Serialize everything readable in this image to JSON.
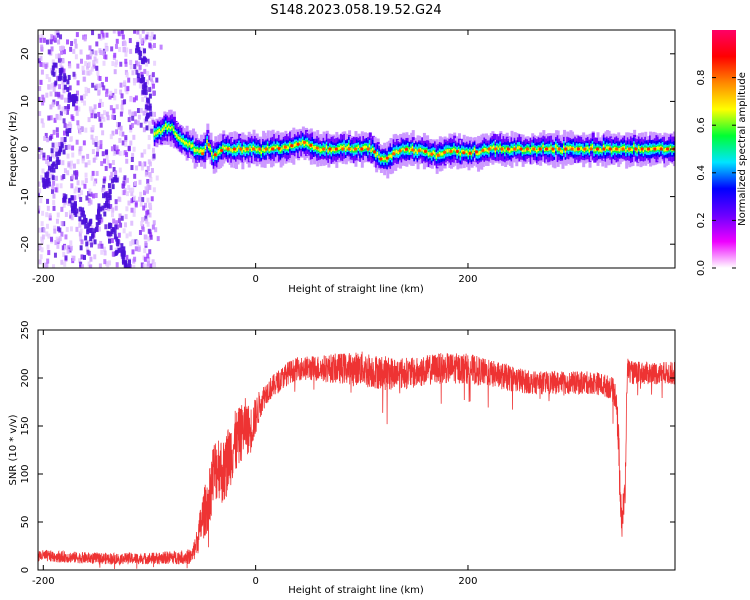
{
  "figure": {
    "title": "S148.2023.058.19.52.G24"
  },
  "colors": {
    "snr_line": "#ee3333",
    "spectral_dots": "#7a2ee0",
    "colorbar_stops": [
      "#ffffff",
      "#ee00ff",
      "#6a00ff",
      "#0000ff",
      "#00e5ff",
      "#00ff33",
      "#ffff00",
      "#ff8800",
      "#ff0000",
      "#ff0066"
    ]
  },
  "chart_data": [
    {
      "type": "heatmap",
      "xlabel": "Height of straight line (km)",
      "ylabel": "Frequency (Hz)",
      "xlim": [
        -205,
        395
      ],
      "ylim": [
        -25,
        25
      ],
      "x_ticks": [
        -200,
        0,
        200
      ],
      "y_ticks": [
        -20,
        -10,
        0,
        10,
        20
      ],
      "grid": false,
      "colorbar": {
        "label": "Normalized spectral amplitude",
        "range": [
          0,
          1
        ],
        "ticks": [
          0.0,
          0.2,
          0.4,
          0.6,
          0.8
        ]
      },
      "ridge": {
        "description": "dominant spectral ridge (peak frequency) vs height",
        "x": [
          -90,
          -85,
          -80,
          -75,
          -70,
          -60,
          -50,
          -45,
          -40,
          -30,
          -20,
          0,
          20,
          40,
          45,
          50,
          60,
          80,
          100,
          110,
          115,
          120,
          130,
          140,
          160,
          170,
          180,
          190,
          200,
          220,
          240,
          260,
          280,
          300,
          320,
          340,
          360,
          380,
          395
        ],
        "y": [
          3.5,
          4.5,
          5.0,
          3.0,
          2.0,
          0.5,
          -1.0,
          1.5,
          -1.5,
          0.0,
          0.0,
          0.0,
          0.0,
          1.0,
          1.5,
          1.0,
          0.0,
          0.0,
          0.0,
          0.0,
          -1.5,
          -2.5,
          -1.0,
          0.0,
          -0.5,
          -1.5,
          -0.5,
          -0.5,
          -1.0,
          0.0,
          0.0,
          0.0,
          0.0,
          0.0,
          0.0,
          0.0,
          0.0,
          0.0,
          0.0
        ]
      },
      "noise_region": {
        "description": "scattered low-amplitude noise with higher-amplitude streaks",
        "x_range": [
          -205,
          -95
        ],
        "y_range": [
          -25,
          25
        ],
        "streaks": [
          {
            "x": [
              -200,
              -175
            ],
            "y": [
              -8,
              4
            ]
          },
          {
            "x": [
              -180,
              -150
            ],
            "y": [
              -10,
              -18
            ]
          },
          {
            "x": [
              -160,
              -130
            ],
            "y": [
              -20,
              -5
            ]
          },
          {
            "x": [
              -140,
              -120
            ],
            "y": [
              -15,
              -25
            ]
          },
          {
            "x": [
              -110,
              -100
            ],
            "y": [
              22,
              6
            ]
          },
          {
            "x": [
              -190,
              -170
            ],
            "y": [
              18,
              10
            ]
          }
        ]
      }
    },
    {
      "type": "line",
      "xlabel": "Height of straight line (km)",
      "ylabel": "SNR (10 * v/v)",
      "xlim": [
        -205,
        395
      ],
      "ylim": [
        0,
        250
      ],
      "x_ticks": [
        -200,
        0,
        200
      ],
      "y_ticks": [
        0,
        50,
        100,
        150,
        200,
        250
      ],
      "grid": false,
      "series": [
        {
          "color": "#ee3333",
          "description": "noisy SNR trace; values are the approximate running center, band is the noise spread",
          "x": [
            -205,
            -150,
            -100,
            -60,
            -55,
            -50,
            -45,
            -40,
            -35,
            -30,
            -25,
            -20,
            -15,
            -10,
            -5,
            0,
            5,
            10,
            15,
            20,
            30,
            40,
            60,
            80,
            100,
            120,
            150,
            170,
            200,
            220,
            240,
            260,
            280,
            300,
            320,
            335,
            340,
            342,
            345,
            348,
            350,
            355,
            365,
            380,
            395
          ],
          "y": [
            15,
            12,
            12,
            14,
            30,
            55,
            70,
            100,
            110,
            100,
            120,
            130,
            140,
            150,
            145,
            160,
            175,
            185,
            190,
            195,
            205,
            210,
            210,
            210,
            210,
            205,
            205,
            210,
            210,
            205,
            200,
            195,
            195,
            195,
            195,
            190,
            180,
            120,
            50,
            80,
            210,
            205,
            205,
            205,
            205
          ],
          "spread": [
            6,
            6,
            6,
            8,
            15,
            25,
            30,
            35,
            35,
            35,
            35,
            35,
            30,
            30,
            25,
            20,
            15,
            12,
            12,
            12,
            12,
            12,
            14,
            16,
            18,
            18,
            16,
            16,
            16,
            14,
            14,
            12,
            12,
            12,
            12,
            12,
            15,
            30,
            20,
            20,
            12,
            12,
            12,
            12,
            12
          ]
        }
      ]
    }
  ]
}
